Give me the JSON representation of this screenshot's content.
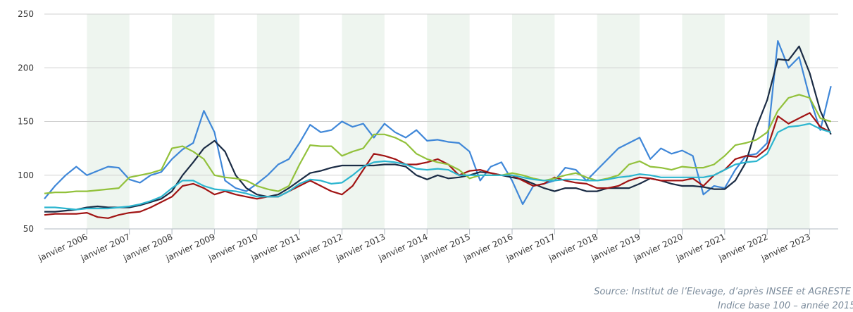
{
  "chart_data": {
    "type": "line",
    "x": [
      2005,
      2005.25,
      2005.5,
      2005.75,
      2006,
      2006.25,
      2006.5,
      2006.75,
      2007,
      2007.25,
      2007.5,
      2007.75,
      2008,
      2008.25,
      2008.5,
      2008.75,
      2009,
      2009.25,
      2009.5,
      2009.75,
      2010,
      2010.25,
      2010.5,
      2010.75,
      2011,
      2011.25,
      2011.5,
      2011.75,
      2012,
      2012.25,
      2012.5,
      2012.75,
      2013,
      2013.25,
      2013.5,
      2013.75,
      2014,
      2014.25,
      2014.5,
      2014.75,
      2015,
      2015.25,
      2015.5,
      2015.75,
      2016,
      2016.25,
      2016.5,
      2016.75,
      2017,
      2017.25,
      2017.5,
      2017.75,
      2018,
      2018.25,
      2018.5,
      2018.75,
      2019,
      2019.25,
      2019.5,
      2019.75,
      2020,
      2020.25,
      2020.5,
      2020.75,
      2021,
      2021.25,
      2021.5,
      2021.75,
      2022,
      2022.25,
      2022.5,
      2022.75,
      2023,
      2023.25,
      2023.5
    ],
    "series": [
      {
        "color": "#3f87d8",
        "values": [
          78,
          90,
          100,
          108,
          100,
          104,
          108,
          107,
          96,
          93,
          100,
          103,
          115,
          124,
          130,
          160,
          140,
          95,
          88,
          85,
          92,
          100,
          110,
          115,
          130,
          147,
          140,
          142,
          150,
          145,
          148,
          135,
          148,
          140,
          135,
          142,
          132,
          133,
          131,
          130,
          122,
          95,
          108,
          112,
          95,
          73,
          90,
          92,
          95,
          107,
          105,
          95,
          105,
          115,
          125,
          130,
          135,
          115,
          125,
          120,
          123,
          118,
          82,
          90,
          88,
          105,
          118,
          120,
          130,
          225,
          200,
          210,
          172,
          142,
          183
        ]
      },
      {
        "color": "#1b2c45",
        "values": [
          66,
          66,
          67,
          68,
          70,
          71,
          70,
          70,
          70,
          72,
          75,
          78,
          85,
          100,
          112,
          125,
          132,
          122,
          100,
          88,
          82,
          80,
          82,
          88,
          95,
          102,
          104,
          107,
          109,
          109,
          109,
          109,
          110,
          110,
          108,
          100,
          96,
          100,
          97,
          98,
          100,
          103,
          102,
          100,
          98,
          96,
          92,
          88,
          85,
          88,
          88,
          85,
          85,
          88,
          88,
          88,
          92,
          97,
          95,
          92,
          90,
          90,
          89,
          87,
          87,
          95,
          112,
          145,
          170,
          208,
          207,
          220,
          195,
          160,
          138
        ]
      },
      {
        "color": "#a11414",
        "values": [
          63,
          64,
          64,
          64,
          65,
          61,
          60,
          63,
          65,
          66,
          70,
          75,
          80,
          90,
          92,
          88,
          82,
          85,
          82,
          80,
          78,
          80,
          80,
          85,
          90,
          95,
          90,
          85,
          82,
          90,
          105,
          120,
          118,
          115,
          110,
          110,
          112,
          115,
          110,
          100,
          104,
          105,
          102,
          100,
          100,
          95,
          90,
          92,
          98,
          95,
          93,
          92,
          88,
          88,
          90,
          95,
          98,
          97,
          95,
          95,
          95,
          97,
          90,
          100,
          105,
          115,
          118,
          117,
          125,
          155,
          148,
          153,
          158,
          145,
          140
        ]
      },
      {
        "color": "#92c13b",
        "values": [
          83,
          84,
          84,
          85,
          85,
          86,
          87,
          88,
          98,
          100,
          102,
          105,
          125,
          127,
          122,
          115,
          100,
          98,
          97,
          95,
          90,
          87,
          85,
          90,
          110,
          128,
          127,
          127,
          118,
          122,
          125,
          138,
          138,
          135,
          130,
          120,
          115,
          112,
          110,
          105,
          97,
          100,
          100,
          100,
          102,
          100,
          97,
          95,
          97,
          100,
          102,
          98,
          95,
          97,
          100,
          110,
          113,
          108,
          107,
          105,
          108,
          107,
          107,
          110,
          118,
          128,
          130,
          133,
          140,
          160,
          172,
          175,
          172,
          153,
          150
        ]
      },
      {
        "color": "#2bb5cf",
        "values": [
          70,
          70,
          69,
          68,
          69,
          69,
          69,
          70,
          71,
          73,
          76,
          80,
          88,
          95,
          95,
          90,
          87,
          86,
          85,
          83,
          80,
          80,
          80,
          85,
          92,
          96,
          95,
          92,
          93,
          100,
          108,
          112,
          113,
          112,
          110,
          106,
          105,
          106,
          105,
          100,
          100,
          100,
          100,
          100,
          100,
          98,
          96,
          95,
          95,
          96,
          96,
          95,
          95,
          96,
          98,
          99,
          101,
          100,
          98,
          98,
          98,
          98,
          98,
          100,
          105,
          110,
          112,
          113,
          120,
          140,
          145,
          146,
          148,
          143,
          140
        ]
      }
    ],
    "xlim": [
      2005,
      2023.67
    ],
    "xticks": [
      {
        "value": 2006,
        "label": "janvier 2006"
      },
      {
        "value": 2007,
        "label": "janvier 2007"
      },
      {
        "value": 2008,
        "label": "janvier 2008"
      },
      {
        "value": 2009,
        "label": "janvier 2009"
      },
      {
        "value": 2010,
        "label": "janvier 2010"
      },
      {
        "value": 2011,
        "label": "janvier 2011"
      },
      {
        "value": 2012,
        "label": "janvier 2012"
      },
      {
        "value": 2013,
        "label": "janvier 2013"
      },
      {
        "value": 2014,
        "label": "janvier 2014"
      },
      {
        "value": 2015,
        "label": "janvier 2015"
      },
      {
        "value": 2016,
        "label": "janvier 2016"
      },
      {
        "value": 2017,
        "label": "janvier 2017"
      },
      {
        "value": 2018,
        "label": "janvier 2018"
      },
      {
        "value": 2019,
        "label": "janvier 2019"
      },
      {
        "value": 2020,
        "label": "janvier 2020"
      },
      {
        "value": 2021,
        "label": "janvier 2021"
      },
      {
        "value": 2022,
        "label": "janvier 2022"
      },
      {
        "value": 2023,
        "label": "janvier 2023"
      }
    ],
    "ylim": [
      50,
      250
    ],
    "yticks": [
      50,
      100,
      150,
      200,
      250
    ],
    "grid": true,
    "source": "Source: Institut de l’Elevage, d’après INSEE et AGRESTE",
    "note": "Indice base 100 – année 2015"
  }
}
